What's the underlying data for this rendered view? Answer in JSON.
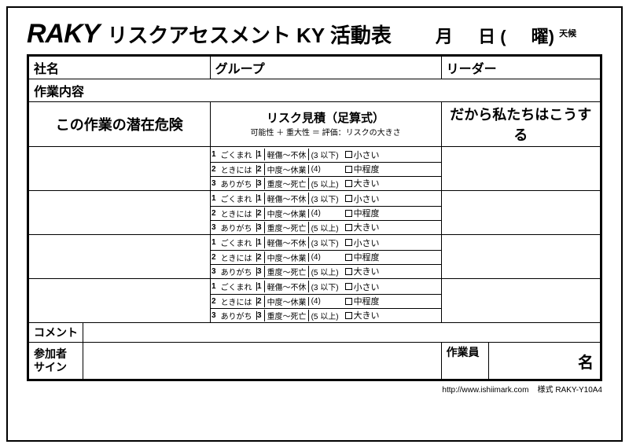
{
  "brand": "RAKY",
  "title": "リスクアセスメント KY 活動表",
  "date": {
    "month": "月",
    "day": "日",
    "open": "(",
    "dow_suffix": "曜",
    "close": ")",
    "weather_label": "天候"
  },
  "row1": {
    "company": "社名",
    "group": "グループ",
    "leader": "リーダー"
  },
  "row2": {
    "work": "作業内容"
  },
  "columns": {
    "hazard": "この作業の潜在危険",
    "risk_title": "リスク見積（足算式）",
    "risk_sub": "可能性 ＋ 重大性 ＝ 評価：リスクの大きさ",
    "action": "だから私たちはこうする"
  },
  "risk": {
    "possibility": [
      "ごくまれ",
      "ときには",
      "ありがち"
    ],
    "severity": [
      "軽傷～不休",
      "中度～休業",
      "重度～死亡"
    ],
    "eval_ranges": [
      "(3 以下)",
      "(4)",
      "(5 以上)"
    ],
    "eval_labels": [
      "小さい",
      "中程度",
      "大きい"
    ]
  },
  "bottom": {
    "comment": "コメント",
    "signatures": "参加者\nサイン",
    "workers_label": "作業員",
    "count_unit": "名"
  },
  "footer": {
    "url": "http://www.ishiimark.com",
    "form_id": "様式 RAKY-Y10A4"
  }
}
